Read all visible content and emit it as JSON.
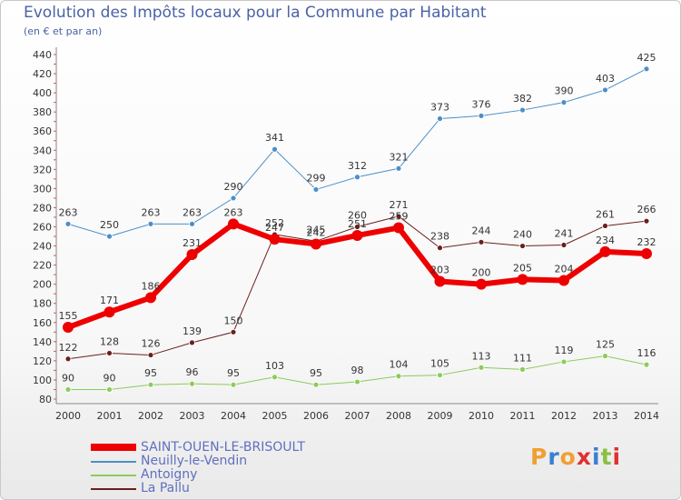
{
  "header": {
    "title": "Evolution des Impôts locaux pour la Commune par Habitant",
    "subtitle": "(en € et par an)"
  },
  "logo": {
    "text": "Proxiti"
  },
  "chart_data": {
    "type": "line",
    "x": [
      "2000",
      "2001",
      "2002",
      "2003",
      "2004",
      "2005",
      "2006",
      "2007",
      "2008",
      "2009",
      "2010",
      "2011",
      "2012",
      "2013",
      "2014"
    ],
    "ylim": [
      80,
      440
    ],
    "yticks": [
      80,
      100,
      120,
      140,
      160,
      180,
      200,
      220,
      240,
      260,
      280,
      300,
      320,
      340,
      360,
      380,
      400,
      420,
      440
    ],
    "grid": false,
    "legend_position": "bottom-left",
    "series": [
      {
        "name": "Neuilly-le-Vendin",
        "color": "#4d8ec7",
        "width": 1,
        "values": [
          263,
          250,
          263,
          263,
          290,
          341,
          299,
          312,
          321,
          373,
          376,
          382,
          390,
          403,
          425
        ]
      },
      {
        "name": "Antoigny",
        "color": "#8ccc5a",
        "width": 1,
        "values": [
          90,
          90,
          95,
          96,
          95,
          103,
          95,
          98,
          104,
          105,
          113,
          111,
          119,
          125,
          116
        ]
      },
      {
        "name": "La Pallu",
        "color": "#6b1f1f",
        "width": 1,
        "values": [
          122,
          128,
          126,
          139,
          150,
          252,
          245,
          260,
          271,
          238,
          244,
          240,
          241,
          261,
          266
        ]
      },
      {
        "name": "SAINT-OUEN-LE-BRISOULT",
        "color": "#ee0000",
        "width": 6,
        "values": [
          155,
          171,
          186,
          231,
          263,
          247,
          242,
          251,
          259,
          203,
          200,
          205,
          204,
          234,
          232
        ]
      }
    ]
  }
}
